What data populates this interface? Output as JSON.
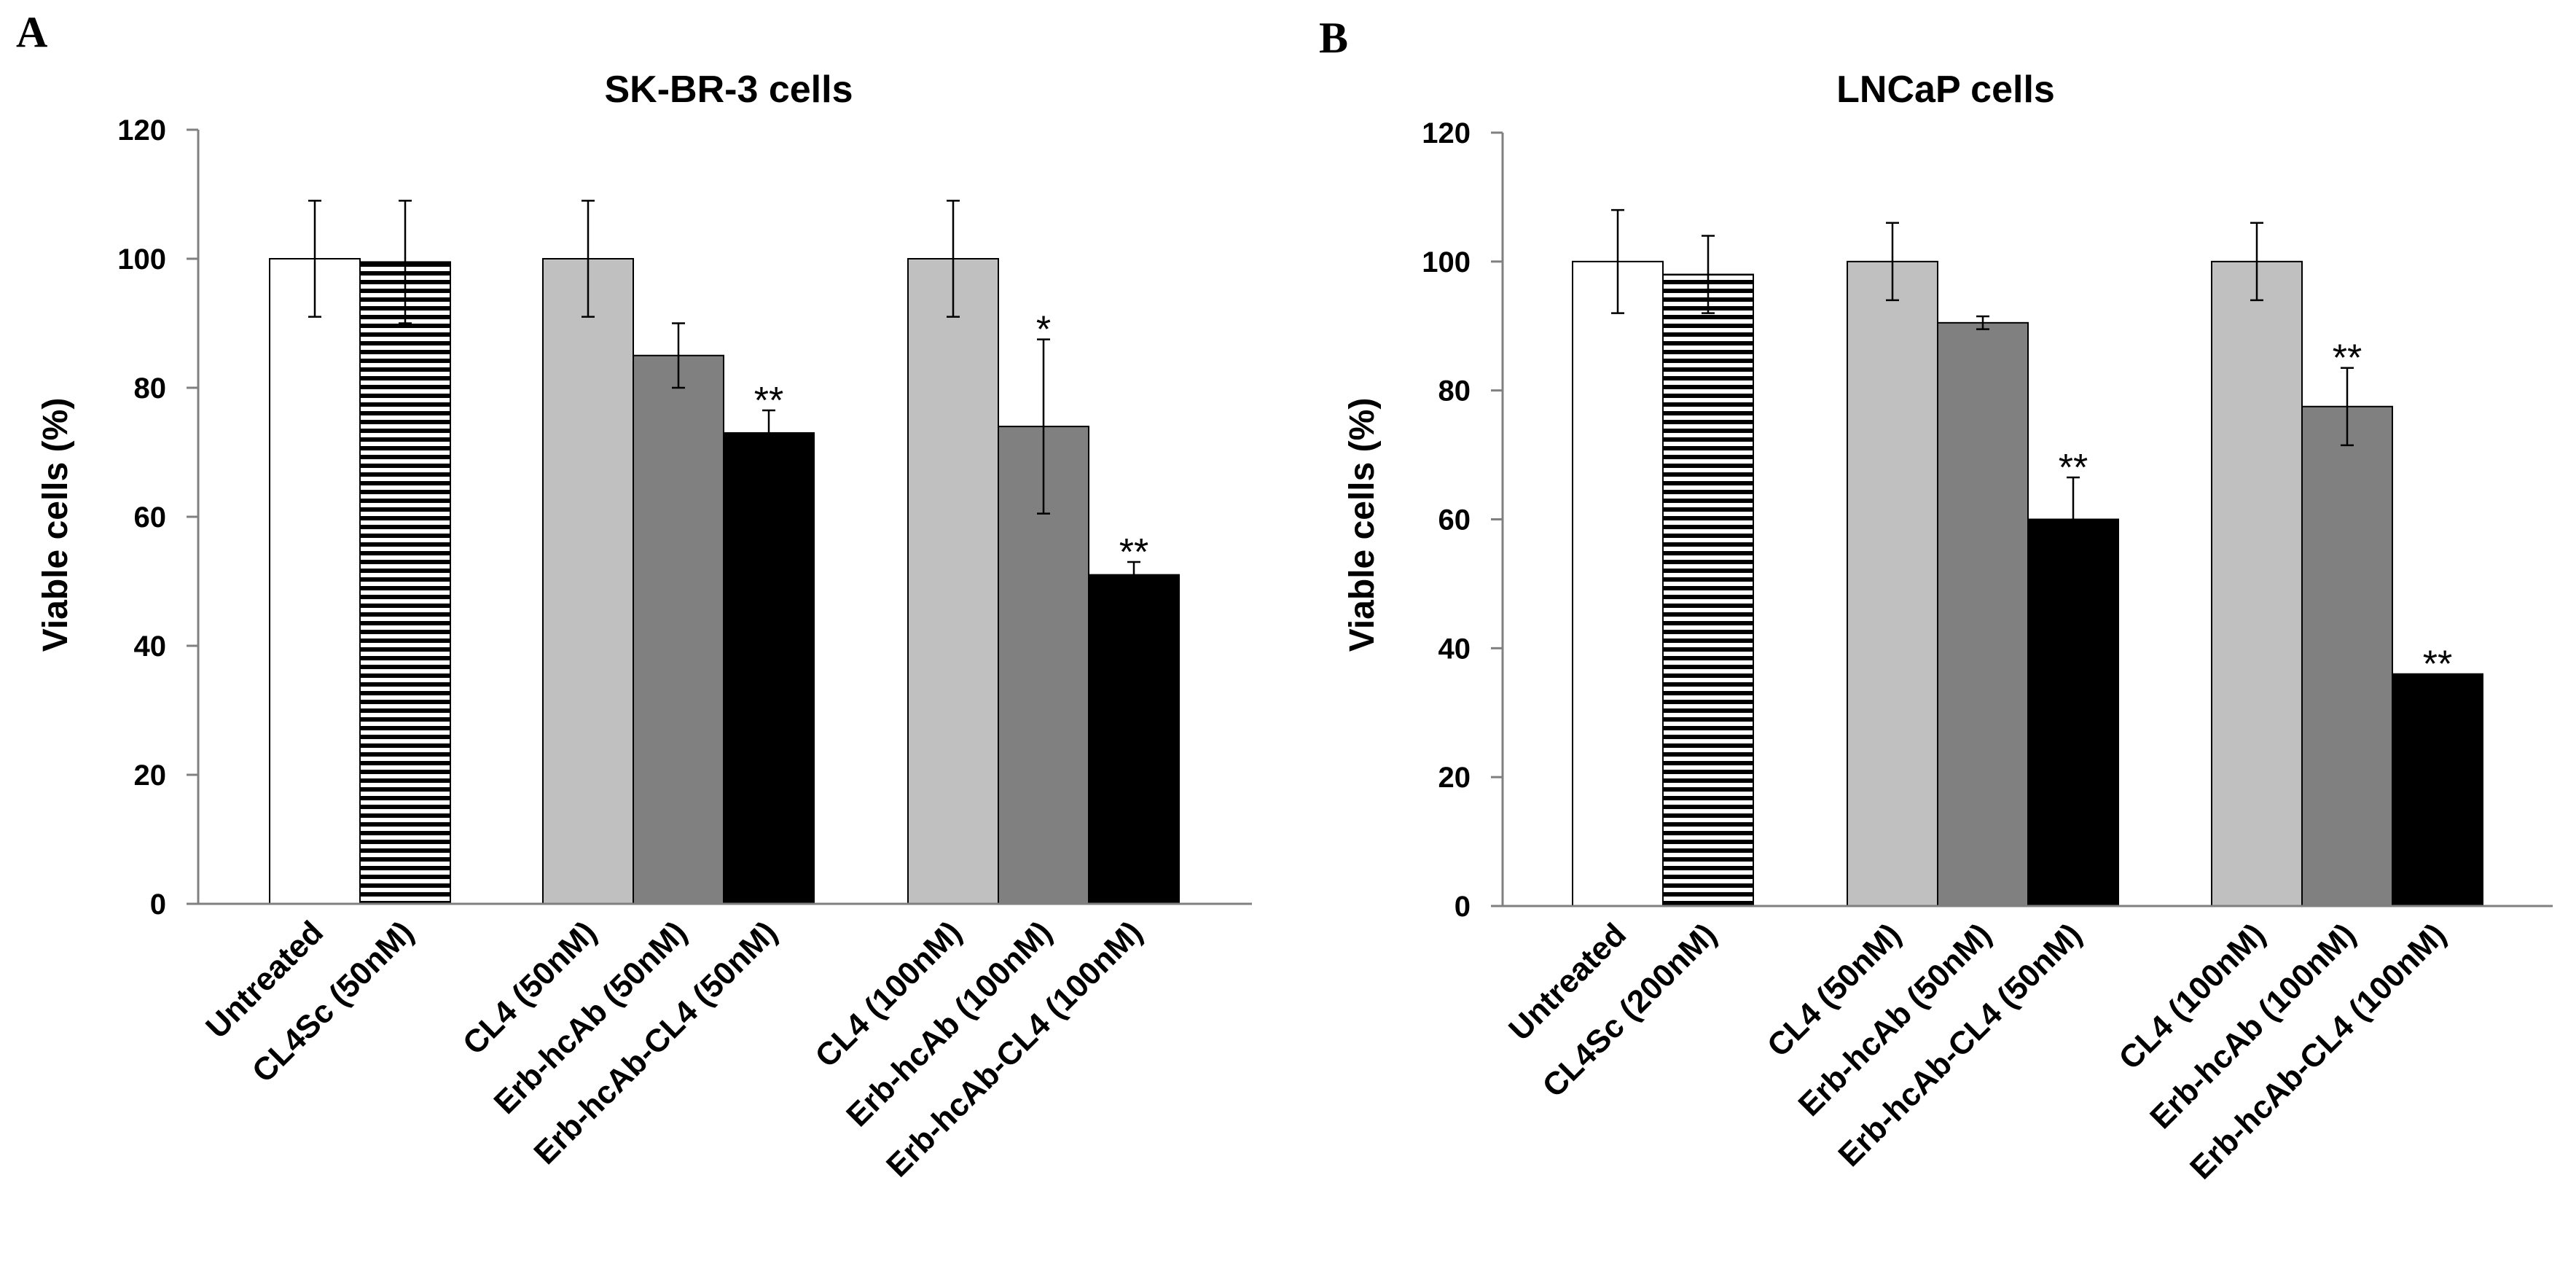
{
  "colors": {
    "untreated": "#ffffff",
    "scrambled": "#ffffff",
    "cl4": "#c0c0c0",
    "antibody": "#808080",
    "conjugate": "#000000",
    "axis": "#808080",
    "outline": "#000000"
  },
  "chart_data": [
    {
      "panel": "A",
      "type": "bar",
      "title": "SK-BR-3 cells",
      "xlabel": "",
      "ylabel": "Viable cells (%)",
      "ylim": [
        0,
        120
      ],
      "yticks": [
        "0",
        "20",
        "40",
        "60",
        "80",
        "100",
        "120"
      ],
      "groups": [
        {
          "bars": [
            {
              "label": "Untreated",
              "value": 100,
              "error": 9,
              "fill": "untreated",
              "sig": ""
            },
            {
              "label": "CL4Sc (50nM)",
              "value": 99.5,
              "error": 9.5,
              "fill": "scrambled",
              "sig": ""
            }
          ]
        },
        {
          "bars": [
            {
              "label": "CL4 (50nM)",
              "value": 100,
              "error": 9,
              "fill": "cl4",
              "sig": ""
            },
            {
              "label": "Erb-hcAb (50nM)",
              "value": 85,
              "error": 5,
              "fill": "antibody",
              "sig": ""
            },
            {
              "label": "Erb-hcAb-CL4 (50nM)",
              "value": 73,
              "error": 3.5,
              "fill": "conjugate",
              "sig": "**"
            }
          ]
        },
        {
          "bars": [
            {
              "label": "CL4 (100nM)",
              "value": 100,
              "error": 9,
              "fill": "cl4",
              "sig": ""
            },
            {
              "label": "Erb-hcAb (100nM)",
              "value": 74,
              "error": 13.5,
              "fill": "antibody",
              "sig": "*"
            },
            {
              "label": "Erb-hcAb-CL4 (100nM)",
              "value": 51,
              "error": 2,
              "fill": "conjugate",
              "sig": "**"
            }
          ]
        }
      ]
    },
    {
      "panel": "B",
      "type": "bar",
      "title": "LNCaP cells",
      "xlabel": "",
      "ylabel": "Viable cells (%)",
      "ylim": [
        0,
        120
      ],
      "yticks": [
        "0",
        "20",
        "40",
        "60",
        "80",
        "100",
        "120"
      ],
      "groups": [
        {
          "bars": [
            {
              "label": "Untreated",
              "value": 100,
              "error": 8,
              "fill": "untreated",
              "sig": ""
            },
            {
              "label": "CL4Sc (200nM)",
              "value": 98,
              "error": 6,
              "fill": "scrambled",
              "sig": ""
            }
          ]
        },
        {
          "bars": [
            {
              "label": "CL4 (50nM)",
              "value": 100,
              "error": 6,
              "fill": "cl4",
              "sig": ""
            },
            {
              "label": "Erb-hcAb (50nM)",
              "value": 90.5,
              "error": 1,
              "fill": "antibody",
              "sig": ""
            },
            {
              "label": "Erb-hcAb-CL4 (50nM)",
              "value": 60,
              "error": 6.5,
              "fill": "conjugate",
              "sig": "**"
            }
          ]
        },
        {
          "bars": [
            {
              "label": "CL4 (100nM)",
              "value": 100,
              "error": 6,
              "fill": "cl4",
              "sig": ""
            },
            {
              "label": "Erb-hcAb (100nM)",
              "value": 77.5,
              "error": 6,
              "fill": "antibody",
              "sig": "**"
            },
            {
              "label": "Erb-hcAb-CL4 (100nM)",
              "value": 36,
              "error": 0,
              "fill": "conjugate",
              "sig": "**"
            }
          ]
        }
      ]
    }
  ]
}
